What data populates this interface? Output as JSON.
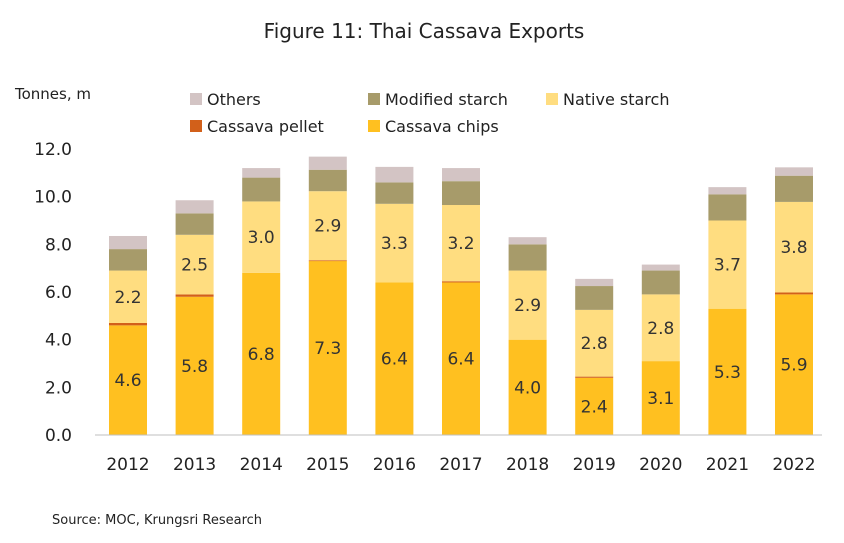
{
  "chart_data": {
    "type": "bar",
    "stacked": true,
    "title": "Figure 11: Thai Cassava Exports",
    "ylabel": "Tonnes, m",
    "ylim": [
      0,
      12
    ],
    "yticks": [
      "0.0",
      "2.0",
      "4.0",
      "6.0",
      "8.0",
      "10.0",
      "12.0"
    ],
    "categories": [
      "2012",
      "2013",
      "2014",
      "2015",
      "2016",
      "2017",
      "2018",
      "2019",
      "2020",
      "2021",
      "2022"
    ],
    "series": [
      {
        "name": "Cassava chips",
        "color": "#FFC020",
        "values": [
          4.6,
          5.8,
          6.8,
          7.3,
          6.4,
          6.4,
          4.0,
          2.4,
          3.1,
          5.3,
          5.9
        ],
        "labels": [
          "4.6",
          "5.8",
          "6.8",
          "7.3",
          "6.4",
          "6.4",
          "4.0",
          "2.4",
          "3.1",
          "5.3",
          "5.9"
        ]
      },
      {
        "name": "Cassava pellet",
        "color": "#D2601A",
        "values": [
          0.1,
          0.1,
          0.0,
          0.03,
          0.0,
          0.05,
          0.0,
          0.05,
          0.0,
          0.0,
          0.08
        ]
      },
      {
        "name": "Native starch",
        "color": "#FFDD80",
        "values": [
          2.2,
          2.5,
          3.0,
          2.9,
          3.3,
          3.2,
          2.9,
          2.8,
          2.8,
          3.7,
          3.8
        ],
        "labels": [
          "2.2",
          "2.5",
          "3.0",
          "2.9",
          "3.3",
          "3.2",
          "2.9",
          "2.8",
          "2.8",
          "3.7",
          "3.8"
        ]
      },
      {
        "name": "Modified starch",
        "color": "#A79B6A",
        "values": [
          0.9,
          0.9,
          1.0,
          0.9,
          0.9,
          1.0,
          1.1,
          1.0,
          1.0,
          1.1,
          1.1
        ]
      },
      {
        "name": "Others",
        "color": "#D3C4C4",
        "values": [
          0.55,
          0.55,
          0.4,
          0.55,
          0.65,
          0.55,
          0.3,
          0.3,
          0.25,
          0.3,
          0.35
        ]
      }
    ],
    "legend": {
      "placement": "top",
      "rows": [
        [
          "Others",
          "Modified starch",
          "Native starch"
        ],
        [
          "Cassava pellet",
          "Cassava chips"
        ]
      ]
    },
    "grid": false,
    "source": "Source: MOC, Krungsri Research"
  }
}
